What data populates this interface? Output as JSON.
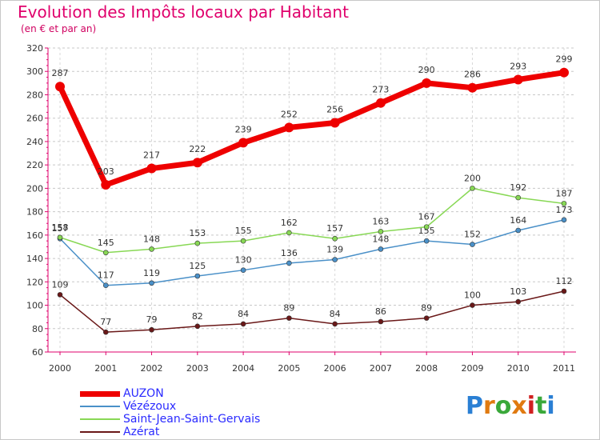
{
  "header": {
    "title": "Evolution des Impôts locaux par Habitant",
    "subtitle": "(en € et par an)"
  },
  "logo_text": "Proxiti",
  "chart_data": {
    "type": "line",
    "title": "Evolution des Impôts locaux par Habitant",
    "subtitle": "(en € et par an)",
    "xlabel": "",
    "ylabel": "",
    "x": [
      "2000",
      "2001",
      "2002",
      "2003",
      "2004",
      "2005",
      "2006",
      "2007",
      "2008",
      "2009",
      "2010",
      "2011"
    ],
    "ylim": [
      60,
      320
    ],
    "yticks": [
      60,
      80,
      100,
      120,
      140,
      160,
      180,
      200,
      220,
      240,
      260,
      280,
      300,
      320
    ],
    "grid": "horizontal dashed",
    "legend_position": "bottom-left",
    "series": [
      {
        "name": "AUZON",
        "color": "#ee0000",
        "values": [
          287,
          203,
          217,
          222,
          239,
          252,
          256,
          273,
          290,
          286,
          293,
          299
        ]
      },
      {
        "name": "Vézézoux",
        "color": "#4a90c8",
        "values": [
          157,
          117,
          119,
          125,
          130,
          136,
          139,
          148,
          155,
          152,
          164,
          173
        ]
      },
      {
        "name": "Saint-Jean-Saint-Gervais",
        "color": "#88d855",
        "values": [
          158,
          145,
          148,
          153,
          155,
          162,
          157,
          163,
          167,
          200,
          192,
          187
        ]
      },
      {
        "name": "Azérat",
        "color": "#6a1818",
        "values": [
          109,
          77,
          79,
          82,
          84,
          89,
          84,
          86,
          89,
          100,
          103,
          112
        ]
      }
    ]
  }
}
